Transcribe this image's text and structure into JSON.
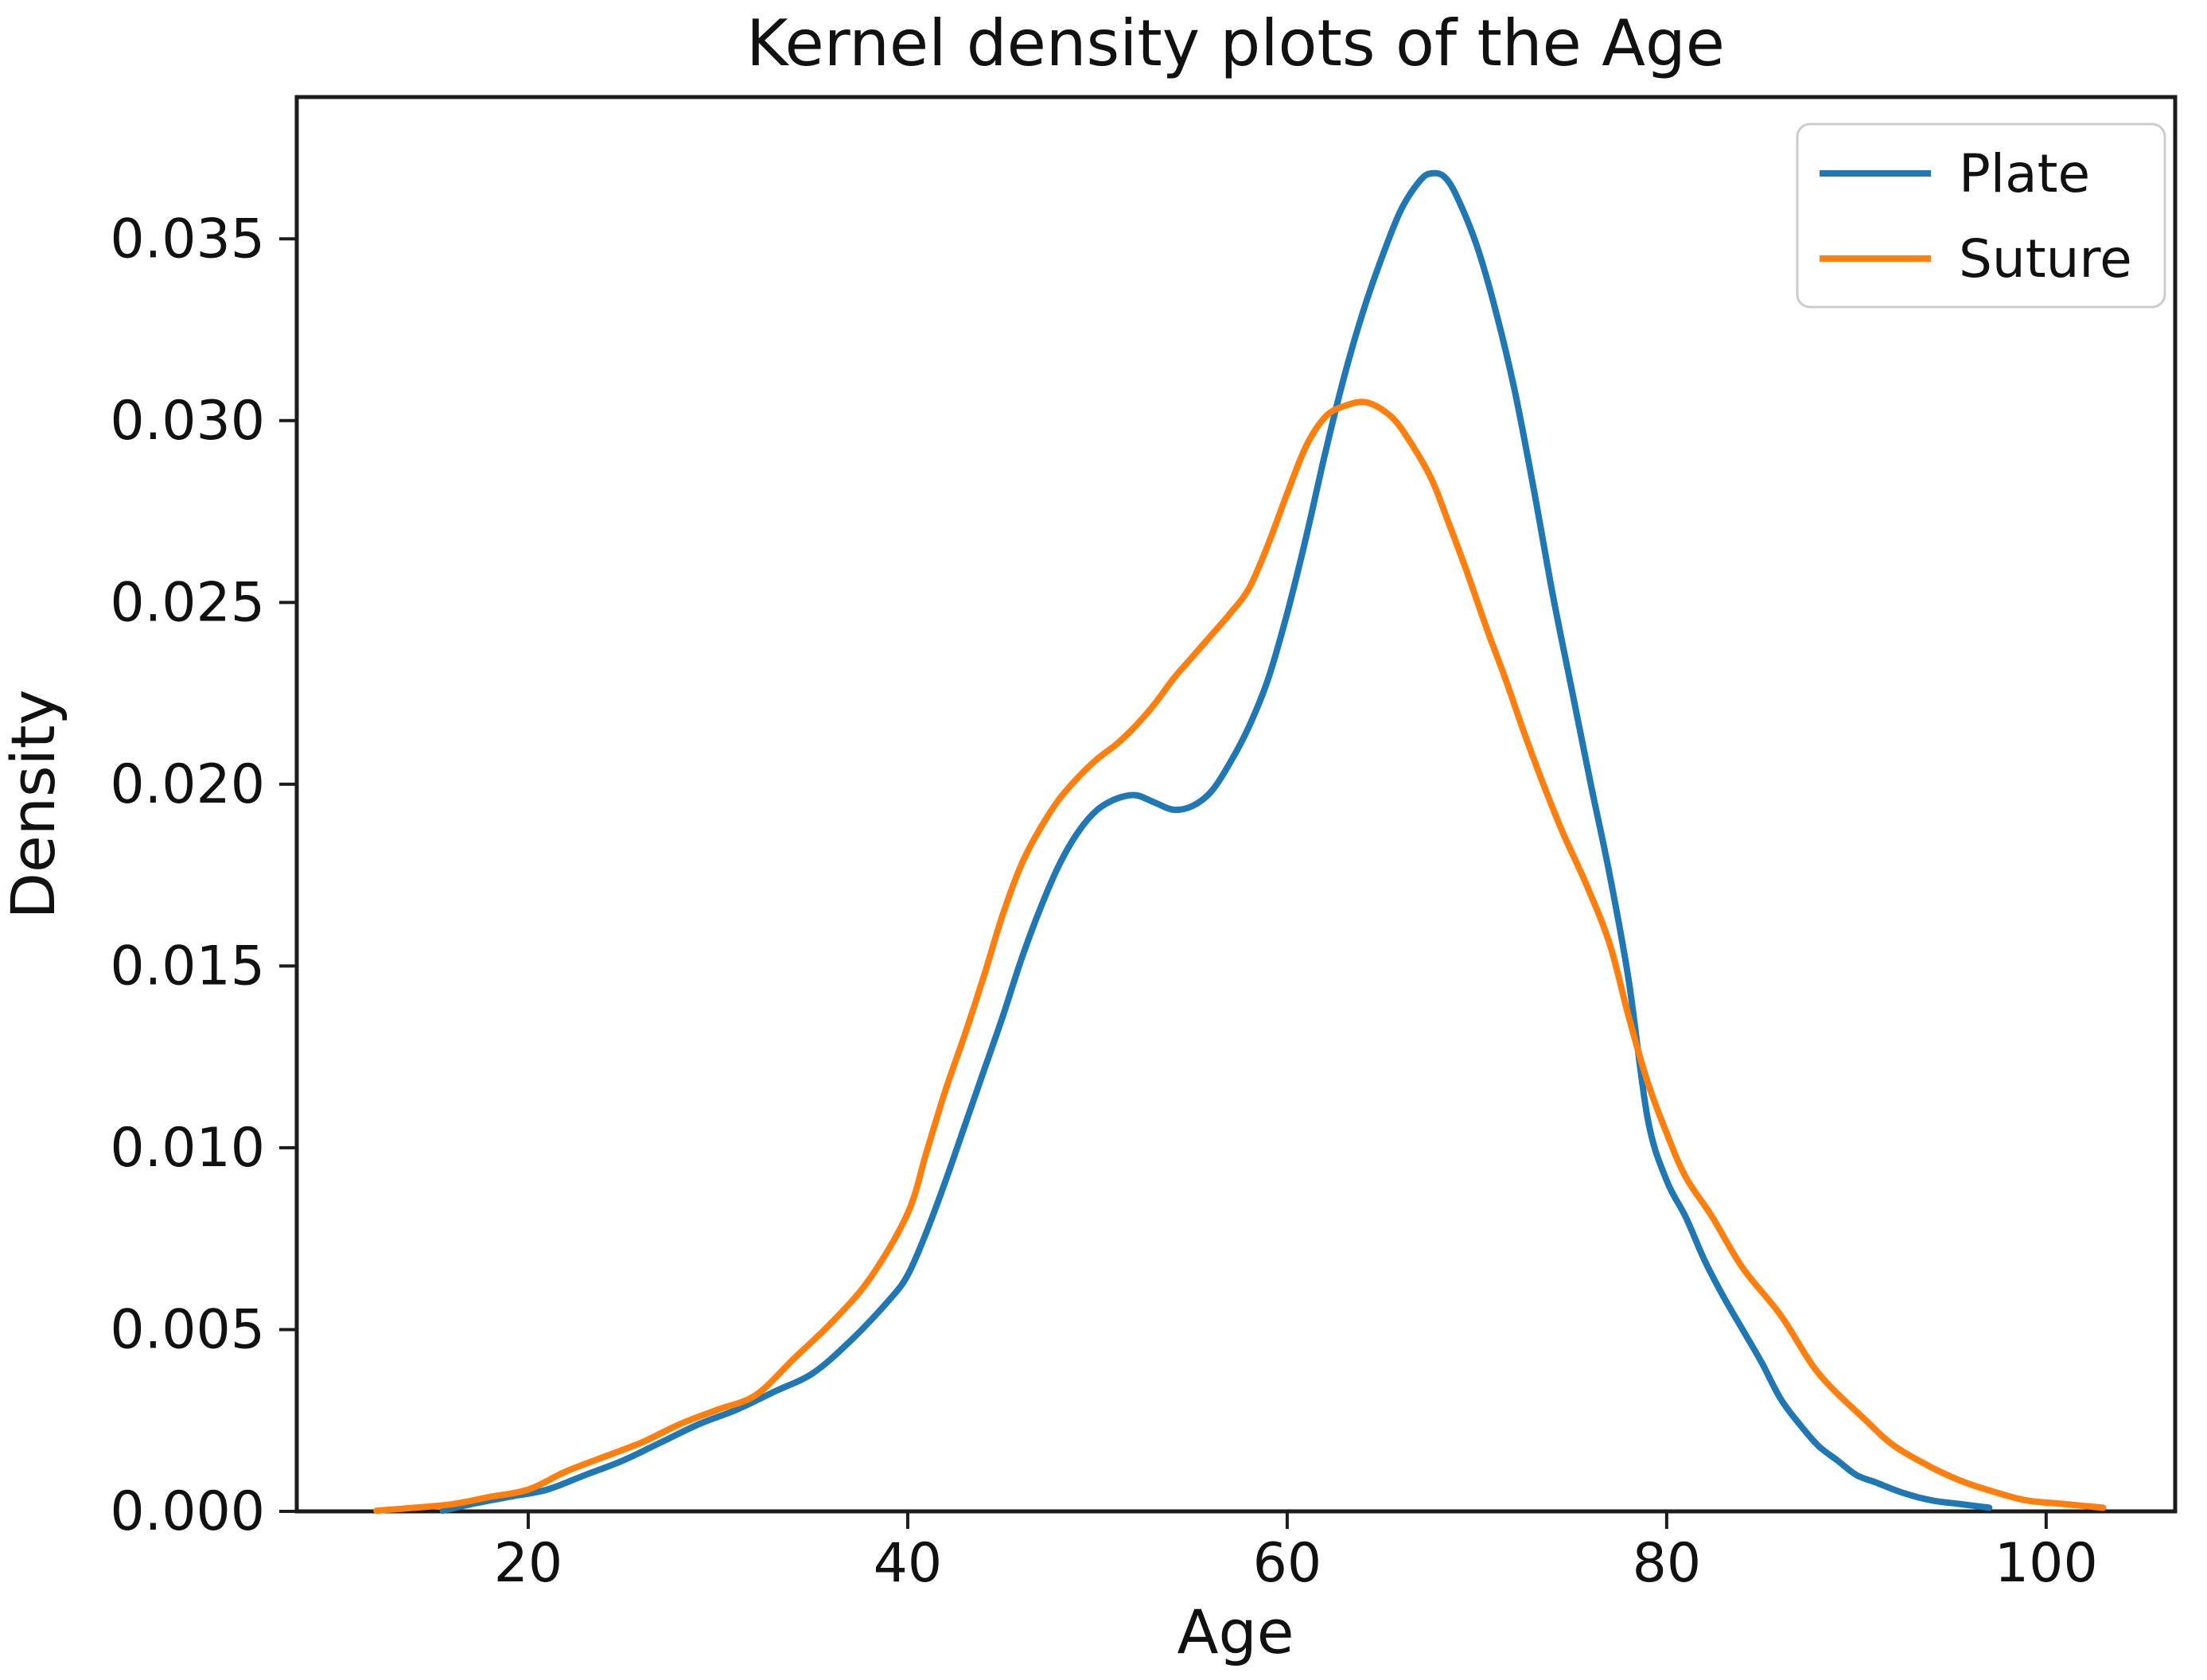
{
  "chart_data": {
    "type": "line",
    "title": "Kernel density plots of the Age",
    "xlabel": "Age",
    "ylabel": "Density",
    "xlim": [
      7.8,
      106.8
    ],
    "ylim": [
      0,
      0.0389
    ],
    "xticks": [
      20,
      40,
      60,
      80,
      100
    ],
    "yticks": [
      0.0,
      0.005,
      0.01,
      0.015,
      0.02,
      0.025,
      0.03,
      0.035
    ],
    "ytick_format_decimals": 3,
    "grid": false,
    "legend_position": "upper right",
    "series": [
      {
        "name": "Plate",
        "color": "#1f77b4",
        "points": [
          [
            15.5,
            2e-05
          ],
          [
            17,
            0.0002
          ],
          [
            19,
            0.0004
          ],
          [
            21,
            0.0006
          ],
          [
            23,
            0.001
          ],
          [
            25,
            0.0014
          ],
          [
            27,
            0.0019
          ],
          [
            29,
            0.0024
          ],
          [
            31,
            0.0028
          ],
          [
            33,
            0.0033
          ],
          [
            35,
            0.0038
          ],
          [
            37,
            0.0047
          ],
          [
            39,
            0.0058
          ],
          [
            40,
            0.0065
          ],
          [
            41,
            0.0077
          ],
          [
            42,
            0.0091
          ],
          [
            43,
            0.0106
          ],
          [
            44,
            0.0121
          ],
          [
            45,
            0.0136
          ],
          [
            46,
            0.0152
          ],
          [
            47,
            0.0166
          ],
          [
            48,
            0.0178
          ],
          [
            49,
            0.0187
          ],
          [
            50,
            0.0193
          ],
          [
            51,
            0.0196
          ],
          [
            52,
            0.0197
          ],
          [
            53,
            0.0195
          ],
          [
            54,
            0.0193
          ],
          [
            55,
            0.0194
          ],
          [
            56,
            0.0198
          ],
          [
            57,
            0.0206
          ],
          [
            58,
            0.0216
          ],
          [
            59,
            0.0229
          ],
          [
            60,
            0.0247
          ],
          [
            61,
            0.0268
          ],
          [
            62,
            0.0291
          ],
          [
            63,
            0.0312
          ],
          [
            64,
            0.033
          ],
          [
            65,
            0.0345
          ],
          [
            66,
            0.0358
          ],
          [
            67,
            0.0366
          ],
          [
            67.6,
            0.0368
          ],
          [
            68.3,
            0.0367
          ],
          [
            69,
            0.0361
          ],
          [
            70,
            0.0348
          ],
          [
            71,
            0.033
          ],
          [
            72,
            0.0308
          ],
          [
            73,
            0.0281
          ],
          [
            74,
            0.0252
          ],
          [
            75,
            0.0226
          ],
          [
            76,
            0.02
          ],
          [
            77,
            0.0175
          ],
          [
            78,
            0.0146
          ],
          [
            79,
            0.0108
          ],
          [
            80,
            0.0091
          ],
          [
            81,
            0.0081
          ],
          [
            82,
            0.0069
          ],
          [
            83,
            0.0059
          ],
          [
            84,
            0.005
          ],
          [
            85,
            0.0041
          ],
          [
            86,
            0.0031
          ],
          [
            87,
            0.0024
          ],
          [
            88,
            0.0018
          ],
          [
            89,
            0.0014
          ],
          [
            90,
            0.001
          ],
          [
            91,
            0.0008
          ],
          [
            92.5,
            0.0005
          ],
          [
            94,
            0.0003
          ],
          [
            95.5,
            0.0002
          ],
          [
            97,
            0.0001
          ]
        ]
      },
      {
        "name": "Suture",
        "color": "#ff7f0e",
        "points": [
          [
            12,
            2e-05
          ],
          [
            14,
            0.0001
          ],
          [
            16,
            0.0002
          ],
          [
            18,
            0.0004
          ],
          [
            20,
            0.0006
          ],
          [
            22,
            0.0011
          ],
          [
            24,
            0.0015
          ],
          [
            26,
            0.0019
          ],
          [
            28,
            0.0024
          ],
          [
            30,
            0.0028
          ],
          [
            32,
            0.0032
          ],
          [
            34,
            0.0042
          ],
          [
            36,
            0.0052
          ],
          [
            38,
            0.0064
          ],
          [
            40,
            0.0082
          ],
          [
            41,
            0.0099
          ],
          [
            42,
            0.0116
          ],
          [
            43,
            0.0131
          ],
          [
            44,
            0.0147
          ],
          [
            45,
            0.0164
          ],
          [
            46,
            0.0178
          ],
          [
            47,
            0.0188
          ],
          [
            48,
            0.0196
          ],
          [
            49,
            0.0202
          ],
          [
            50,
            0.0207
          ],
          [
            51,
            0.0211
          ],
          [
            52,
            0.0216
          ],
          [
            53,
            0.0222
          ],
          [
            54,
            0.0229
          ],
          [
            55,
            0.0235
          ],
          [
            56,
            0.0241
          ],
          [
            57,
            0.0247
          ],
          [
            58,
            0.0254
          ],
          [
            59,
            0.0266
          ],
          [
            60,
            0.028
          ],
          [
            61,
            0.0293
          ],
          [
            62,
            0.0301
          ],
          [
            63,
            0.0304
          ],
          [
            64.2,
            0.0305
          ],
          [
            65.5,
            0.0301
          ],
          [
            66.5,
            0.0294
          ],
          [
            67.6,
            0.0284
          ],
          [
            68.5,
            0.0272
          ],
          [
            69.5,
            0.0258
          ],
          [
            70.5,
            0.0243
          ],
          [
            71.5,
            0.0229
          ],
          [
            72.5,
            0.0214
          ],
          [
            73.5,
            0.02
          ],
          [
            74.5,
            0.0187
          ],
          [
            75.8,
            0.0172
          ],
          [
            77,
            0.0156
          ],
          [
            78,
            0.0136
          ],
          [
            79,
            0.0118
          ],
          [
            80,
            0.0104
          ],
          [
            81,
            0.0092
          ],
          [
            82.4,
            0.0081
          ],
          [
            84,
            0.0067
          ],
          [
            86,
            0.0054
          ],
          [
            88,
            0.0038
          ],
          [
            90.5,
            0.0025
          ],
          [
            92,
            0.0018
          ],
          [
            94,
            0.0012
          ],
          [
            95.7,
            0.0008
          ],
          [
            97.5,
            0.0005
          ],
          [
            99,
            0.0003
          ],
          [
            101,
            0.0002
          ],
          [
            103,
            0.0001
          ]
        ]
      }
    ]
  }
}
